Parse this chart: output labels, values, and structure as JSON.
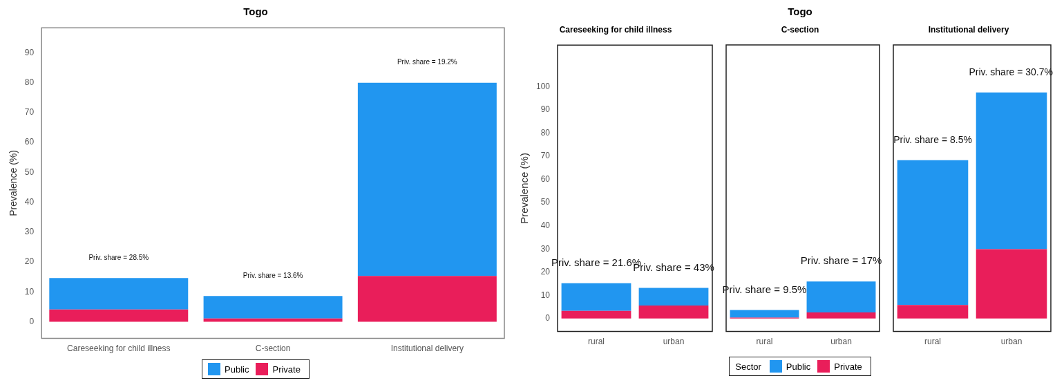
{
  "chart_data": [
    {
      "type": "bar",
      "title": "Togo",
      "ylabel": "Prevalence (%)",
      "categories": [
        "Careseeking for child illness",
        "C-section",
        "Institutional delivery"
      ],
      "stacked": true,
      "grid": false,
      "legend": "bottom",
      "ylim": [
        -5.6,
        98.4
      ],
      "yticks": [
        0,
        10,
        20,
        30,
        40,
        50,
        60,
        70,
        80,
        90
      ],
      "series": [
        {
          "name": "Private",
          "color": "#e91e5a",
          "values": [
            4.1,
            1.1,
            15.3
          ]
        },
        {
          "name": "Public",
          "color": "#2196f0",
          "values": [
            10.5,
            7.5,
            64.7
          ]
        }
      ],
      "annotations": [
        {
          "text": "Priv. share = 28.5%",
          "x": "Careseeking for child illness",
          "y": 14.6
        },
        {
          "text": "Priv. share = 13.6%",
          "x": "C-section",
          "y": 8.6
        },
        {
          "text": "Priv. share = 19.2%",
          "x": "Institutional delivery",
          "y": 80
        }
      ]
    },
    {
      "type": "bar",
      "title": "Careseeking for child illness",
      "ylabel": "Prevalence (%)",
      "categories": [
        "rural",
        "urban"
      ],
      "stacked": true,
      "grid": false,
      "ylim": [
        -5.6,
        118
      ],
      "yticks": [
        0,
        10,
        20,
        30,
        40,
        50,
        60,
        70,
        80,
        90,
        100
      ],
      "series": [
        {
          "color": "#e91e5a",
          "values": [
            3.3,
            5.6
          ]
        },
        {
          "color": "#2196f0",
          "values": [
            11.9,
            7.6
          ]
        }
      ],
      "annotations": [
        {
          "text": "Priv. share = 21.6%",
          "x": "rural",
          "y": 15.2
        },
        {
          "text": "Priv. share = 43%",
          "x": "urban",
          "y": 13.2
        }
      ]
    },
    {
      "type": "bar",
      "title": "C-section",
      "categories": [
        "rural",
        "urban"
      ],
      "stacked": true,
      "grid": false,
      "tick_labels": "x",
      "legend": "bottom",
      "legend_title": "Sector",
      "ylim": [
        -5.6,
        118
      ],
      "yticks": [
        0,
        10,
        20,
        30,
        40,
        50,
        60,
        70,
        80,
        90,
        100
      ],
      "series": [
        {
          "name": "Private",
          "color": "#e91e5a",
          "values": [
            0.4,
            2.6
          ]
        },
        {
          "name": "Public",
          "color": "#2196f0",
          "values": [
            3.3,
            13.4
          ]
        }
      ],
      "annotations": [
        "Togo",
        {
          "text": "Priv. share = 9.5%",
          "x": "rural",
          "y": 3.7
        },
        {
          "text": "Priv. share = 17%",
          "x": "urban",
          "y": 16
        }
      ]
    },
    {
      "type": "bar",
      "title": "Institutional delivery",
      "categories": [
        "rural",
        "urban"
      ],
      "stacked": true,
      "grid": false,
      "tick_labels": "x",
      "ylim": [
        -5.6,
        118
      ],
      "yticks": [
        0,
        10,
        20,
        30,
        40,
        50,
        60,
        70,
        80,
        90,
        100
      ],
      "series": [
        {
          "color": "#e91e5a",
          "values": [
            5.8,
            29.9
          ]
        },
        {
          "color": "#2196f0",
          "values": [
            62.5,
            67.6
          ]
        }
      ],
      "annotations": [
        {
          "text": "Priv. share = 8.5%",
          "x": "rural",
          "y": 68.3
        },
        {
          "text": "Priv. share = 30.7%",
          "x": "urban",
          "y": 97.5
        }
      ]
    }
  ]
}
